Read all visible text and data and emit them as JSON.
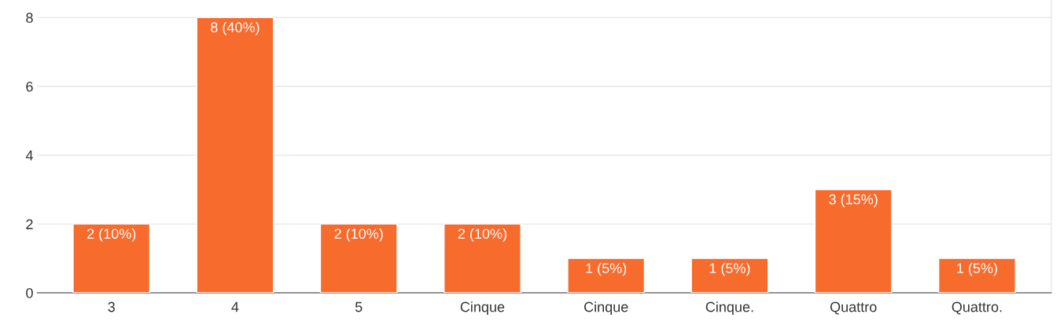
{
  "chart_data": {
    "type": "bar",
    "categories": [
      "3",
      "4",
      "5",
      "Cinque",
      "Cinque",
      "Cinque.",
      "Quattro",
      "Quattro."
    ],
    "values": [
      2,
      8,
      2,
      2,
      1,
      1,
      3,
      1
    ],
    "value_labels": [
      "2 (10%)",
      "8 (40%)",
      "2 (10%)",
      "2 (10%)",
      "1 (5%)",
      "1 (5%)",
      "3 (15%)",
      "1 (5%)"
    ],
    "color": "#f76b2d",
    "ylim": [
      0,
      8.5
    ],
    "yticks": [
      0,
      2,
      4,
      6,
      8
    ],
    "grid": "y",
    "legend": false
  }
}
